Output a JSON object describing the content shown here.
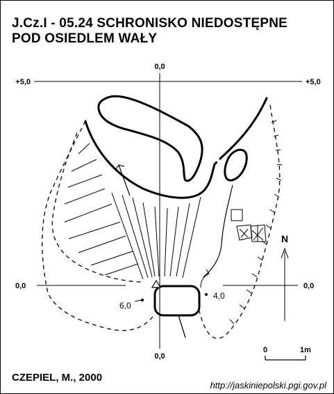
{
  "title": {
    "line1": "J.Cz.I - 05.24  SCHRONISKO NIEDOSTĘPNE",
    "line2": "POD OSIEDLEM WAŁY"
  },
  "grid": {
    "top_center": "0,0",
    "top_left": "+5,0",
    "top_right": "+5,0",
    "mid_left": "0,0",
    "mid_right": "0,0",
    "bottom_center": "0,0"
  },
  "survey_points": {
    "left_depth": "6,0",
    "right_depth": "4,0"
  },
  "north": {
    "label": "N"
  },
  "scale": {
    "start": "0",
    "end": "1m"
  },
  "author": "CZEPIEL, M., 2000",
  "source": "http://jaskiniepolski.pgi.gov.pl"
}
